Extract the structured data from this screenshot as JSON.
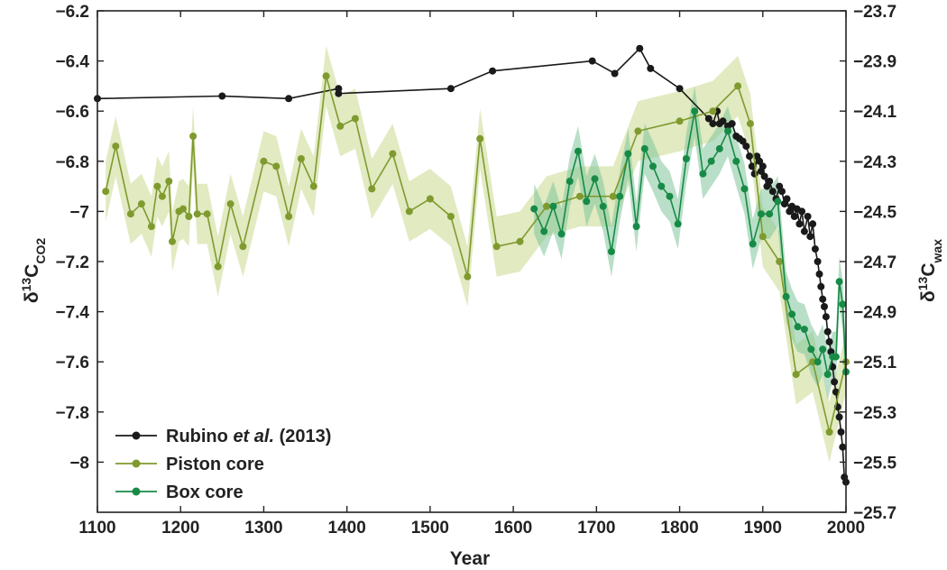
{
  "chart_data": {
    "type": "line",
    "xlabel": "Year",
    "ylabel_left": "δ13CCO2",
    "ylabel_right": "δ13Cwax",
    "xlim": [
      1100,
      2000
    ],
    "ylim_left": [
      -8.2,
      -6.2
    ],
    "ylim_right": [
      -25.7,
      -23.7
    ],
    "xticks": [
      "1100",
      "1200",
      "1300",
      "1400",
      "1500",
      "1600",
      "1700",
      "1800",
      "1900",
      "2000"
    ],
    "yticks_left": [
      "-6.2",
      "-6.4",
      "-6.6",
      "-6.8",
      "-7",
      "-7.2",
      "-7.4",
      "-7.6",
      "-7.8",
      "-8"
    ],
    "yticks_right": [
      "-23.7",
      "-23.9",
      "-24.1",
      "-24.3",
      "-24.5",
      "-24.7",
      "-24.9",
      "-25.1",
      "-25.3",
      "-25.5",
      "-25.7"
    ],
    "legend": {
      "position": "bottom-left",
      "entries": [
        {
          "label_pre": "Rubino ",
          "label_italic": "et al.",
          "label_post": " (2013)",
          "color": "#1a1a1a"
        },
        {
          "label_pre": "Piston core",
          "label_italic": "",
          "label_post": "",
          "color": "#7f9a2e"
        },
        {
          "label_pre": "Box core",
          "label_italic": "",
          "label_post": "",
          "color": "#178a46"
        }
      ]
    },
    "series": [
      {
        "name": "Rubino et al. (2013)",
        "axis": "left",
        "color": "#1a1a1a",
        "x": [
          1100,
          1250,
          1330,
          1390,
          1390,
          1525,
          1575,
          1695,
          1722,
          1752,
          1765,
          1800,
          1835,
          1840,
          1845,
          1848,
          1852,
          1858,
          1863,
          1868,
          1872,
          1876,
          1880,
          1884,
          1887,
          1890,
          1893,
          1896,
          1898,
          1900,
          1902,
          1905,
          1908,
          1912,
          1916,
          1920,
          1923,
          1926,
          1929,
          1932,
          1935,
          1938,
          1941,
          1944,
          1947,
          1950,
          1954,
          1957,
          1960,
          1963,
          1966,
          1968,
          1970,
          1972,
          1974,
          1976,
          1978,
          1980,
          1982,
          1984,
          1986,
          1988,
          1990,
          1992,
          1994,
          1996,
          1998,
          2000
        ],
        "y": [
          -6.55,
          -6.54,
          -6.55,
          -6.51,
          -6.53,
          -6.51,
          -6.44,
          -6.4,
          -6.45,
          -6.35,
          -6.43,
          -6.51,
          -6.63,
          -6.65,
          -6.6,
          -6.65,
          -6.64,
          -6.66,
          -6.65,
          -6.7,
          -6.71,
          -6.72,
          -6.74,
          -6.78,
          -6.82,
          -6.85,
          -6.78,
          -6.8,
          -6.84,
          -6.82,
          -6.86,
          -6.9,
          -6.88,
          -6.92,
          -6.95,
          -6.9,
          -6.92,
          -6.97,
          -6.95,
          -7.0,
          -6.98,
          -7.02,
          -6.99,
          -7.05,
          -7.0,
          -7.08,
          -7.02,
          -7.1,
          -7.05,
          -7.15,
          -7.2,
          -7.25,
          -7.3,
          -7.35,
          -7.38,
          -7.42,
          -7.48,
          -7.52,
          -7.56,
          -7.62,
          -7.68,
          -7.72,
          -7.78,
          -7.82,
          -7.88,
          -7.94,
          -8.06,
          -8.08
        ]
      },
      {
        "name": "Piston core",
        "axis": "right",
        "color": "#7f9a2e",
        "band_color": "#c8d88e",
        "band_width": 0.12,
        "x": [
          1110,
          1122,
          1140,
          1153,
          1165,
          1172,
          1178,
          1186,
          1190,
          1198,
          1203,
          1210,
          1215,
          1220,
          1232,
          1245,
          1260,
          1275,
          1300,
          1315,
          1330,
          1345,
          1360,
          1375,
          1392,
          1410,
          1430,
          1455,
          1475,
          1500,
          1525,
          1545,
          1560,
          1580,
          1608,
          1640,
          1680,
          1720,
          1750,
          1800,
          1840,
          1870,
          1885,
          1900,
          1920,
          1940,
          1960,
          1980,
          2000
        ],
        "y": [
          -24.42,
          -24.24,
          -24.51,
          -24.47,
          -24.56,
          -24.4,
          -24.44,
          -24.38,
          -24.62,
          -24.5,
          -24.49,
          -24.52,
          -24.2,
          -24.51,
          -24.51,
          -24.72,
          -24.47,
          -24.64,
          -24.3,
          -24.32,
          -24.52,
          -24.29,
          -24.4,
          -23.96,
          -24.16,
          -24.13,
          -24.41,
          -24.27,
          -24.5,
          -24.45,
          -24.52,
          -24.76,
          -24.21,
          -24.64,
          -24.62,
          -24.48,
          -24.44,
          -24.44,
          -24.18,
          -24.14,
          -24.1,
          -24.0,
          -24.15,
          -24.6,
          -24.7,
          -25.15,
          -25.1,
          -25.38,
          -25.1
        ]
      },
      {
        "name": "Box core",
        "axis": "right",
        "color": "#178a46",
        "band_color": "#7fc49a",
        "band_width": 0.1,
        "x": [
          1625,
          1637,
          1648,
          1658,
          1668,
          1678,
          1688,
          1698,
          1708,
          1718,
          1728,
          1738,
          1748,
          1758,
          1768,
          1778,
          1788,
          1798,
          1808,
          1818,
          1828,
          1838,
          1848,
          1858,
          1868,
          1878,
          1888,
          1898,
          1908,
          1918,
          1928,
          1935,
          1942,
          1950,
          1958,
          1966,
          1972,
          1978,
          1984,
          1988,
          1992,
          1996,
          2000
        ],
        "y": [
          -24.49,
          -24.58,
          -24.48,
          -24.59,
          -24.38,
          -24.26,
          -24.46,
          -24.37,
          -24.48,
          -24.66,
          -24.44,
          -24.27,
          -24.56,
          -24.25,
          -24.32,
          -24.4,
          -24.44,
          -24.55,
          -24.29,
          -24.1,
          -24.35,
          -24.3,
          -24.25,
          -24.18,
          -24.3,
          -24.41,
          -24.63,
          -24.51,
          -24.51,
          -24.46,
          -24.84,
          -24.91,
          -24.96,
          -24.97,
          -25.05,
          -25.1,
          -25.05,
          -25.15,
          -25.08,
          -25.08,
          -24.78,
          -24.87,
          -25.14
        ]
      }
    ]
  }
}
